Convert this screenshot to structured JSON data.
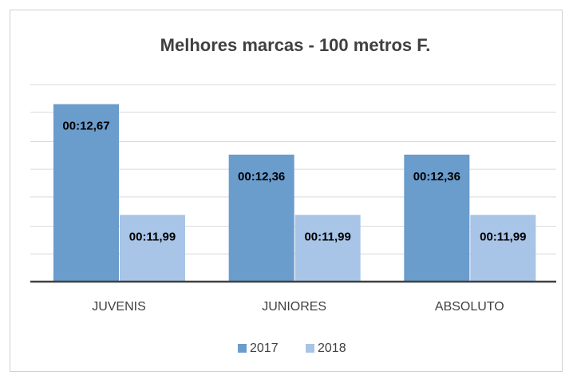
{
  "chart_data": {
    "type": "bar",
    "title": "Melhores marcas - 100 metros F.",
    "categories": [
      "JUVENIS",
      "JUNIORES",
      "ABSOLUTO"
    ],
    "series": [
      {
        "name": "2017",
        "color": "#6a9ccc",
        "values": [
          12.67,
          12.36,
          12.36
        ],
        "value_labels": [
          "00:12,67",
          "00:12,36",
          "00:12,36"
        ]
      },
      {
        "name": "2018",
        "color": "#a8c4e6",
        "values": [
          11.99,
          11.99,
          11.99
        ],
        "value_labels": [
          "00:11,99",
          "00:11,99",
          "00:11,99"
        ]
      }
    ],
    "ylim": [
      11.58,
      12.8
    ],
    "yticks": [
      11.75,
      11.92,
      12.1,
      12.27,
      12.44,
      12.62,
      12.79
    ],
    "grid": true,
    "legend": "bottom"
  }
}
